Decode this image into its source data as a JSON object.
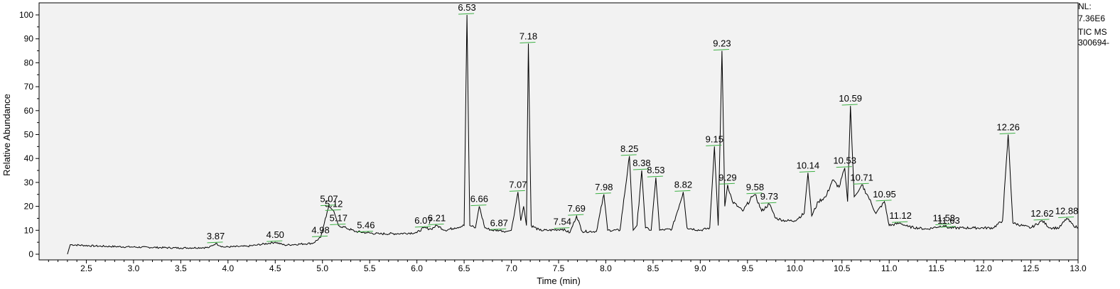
{
  "info": {
    "nl_label": "NL:",
    "nl_value": "7.36E6",
    "scan_label": "TIC  MS",
    "sample": "300694-"
  },
  "chart_data": {
    "type": "line",
    "title": "",
    "xlabel": "Time (min)",
    "ylabel": "Relative Abundance",
    "xlim": [
      2.0,
      13.0
    ],
    "ylim": [
      0,
      100
    ],
    "x_ticks": [
      "2.5",
      "3.0",
      "3.5",
      "4.0",
      "4.5",
      "5.0",
      "5.5",
      "6.0",
      "6.5",
      "7.0",
      "7.5",
      "8.0",
      "8.5",
      "9.0",
      "9.5",
      "10.0",
      "10.5",
      "11.0",
      "11.5",
      "12.0",
      "12.5",
      "13.0"
    ],
    "y_ticks": [
      "0",
      "10",
      "20",
      "30",
      "40",
      "50",
      "60",
      "70",
      "80",
      "90",
      "100"
    ],
    "grid": false,
    "baseline_points": [
      [
        2.3,
        0
      ],
      [
        2.33,
        4
      ],
      [
        2.6,
        3.4
      ],
      [
        3.0,
        3
      ],
      [
        3.5,
        2.6
      ],
      [
        3.8,
        2.8
      ],
      [
        3.87,
        4.5
      ],
      [
        3.95,
        3
      ],
      [
        4.2,
        3.3
      ],
      [
        4.3,
        3.8
      ],
      [
        4.5,
        5
      ],
      [
        4.6,
        3.8
      ],
      [
        4.9,
        4.6
      ],
      [
        4.98,
        7
      ],
      [
        5.02,
        13
      ],
      [
        5.07,
        20
      ],
      [
        5.12,
        18
      ],
      [
        5.17,
        12
      ],
      [
        5.25,
        11
      ],
      [
        5.35,
        9.5
      ],
      [
        5.46,
        9
      ],
      [
        5.6,
        8.5
      ],
      [
        5.8,
        8.6
      ],
      [
        6.0,
        9
      ],
      [
        6.07,
        11
      ],
      [
        6.15,
        10.5
      ],
      [
        6.21,
        12
      ],
      [
        6.3,
        10
      ],
      [
        6.4,
        11
      ],
      [
        6.5,
        12
      ],
      [
        6.53,
        100
      ],
      [
        6.56,
        12
      ],
      [
        6.62,
        11
      ],
      [
        6.66,
        20
      ],
      [
        6.72,
        11
      ],
      [
        6.8,
        10
      ],
      [
        6.87,
        10
      ],
      [
        6.95,
        9.5
      ],
      [
        7.0,
        10
      ],
      [
        7.07,
        26
      ],
      [
        7.1,
        14
      ],
      [
        7.13,
        20
      ],
      [
        7.16,
        12
      ],
      [
        7.18,
        88
      ],
      [
        7.21,
        12
      ],
      [
        7.3,
        10
      ],
      [
        7.4,
        10
      ],
      [
        7.54,
        10.5
      ],
      [
        7.62,
        9
      ],
      [
        7.69,
        16
      ],
      [
        7.75,
        9.5
      ],
      [
        7.9,
        9.5
      ],
      [
        7.98,
        25
      ],
      [
        8.02,
        10
      ],
      [
        8.15,
        10
      ],
      [
        8.25,
        41
      ],
      [
        8.29,
        10
      ],
      [
        8.33,
        12
      ],
      [
        8.38,
        35
      ],
      [
        8.42,
        11
      ],
      [
        8.48,
        10
      ],
      [
        8.53,
        32
      ],
      [
        8.57,
        10
      ],
      [
        8.7,
        10.5
      ],
      [
        8.82,
        26
      ],
      [
        8.86,
        11
      ],
      [
        9.0,
        10
      ],
      [
        9.1,
        11
      ],
      [
        9.15,
        45
      ],
      [
        9.19,
        12
      ],
      [
        9.23,
        85
      ],
      [
        9.26,
        20
      ],
      [
        9.29,
        29
      ],
      [
        9.34,
        22
      ],
      [
        9.45,
        18
      ],
      [
        9.55,
        24
      ],
      [
        9.58,
        25
      ],
      [
        9.65,
        18
      ],
      [
        9.73,
        21
      ],
      [
        9.8,
        15
      ],
      [
        9.9,
        14
      ],
      [
        10.0,
        14
      ],
      [
        10.1,
        17
      ],
      [
        10.14,
        34
      ],
      [
        10.18,
        16
      ],
      [
        10.25,
        22
      ],
      [
        10.33,
        24
      ],
      [
        10.4,
        31
      ],
      [
        10.47,
        28
      ],
      [
        10.53,
        36
      ],
      [
        10.56,
        22
      ],
      [
        10.59,
        62
      ],
      [
        10.63,
        24
      ],
      [
        10.67,
        26
      ],
      [
        10.71,
        29
      ],
      [
        10.78,
        24
      ],
      [
        10.86,
        17
      ],
      [
        10.95,
        22
      ],
      [
        11.0,
        12
      ],
      [
        11.12,
        13
      ],
      [
        11.2,
        11.5
      ],
      [
        11.4,
        10.5
      ],
      [
        11.58,
        12
      ],
      [
        11.63,
        11
      ],
      [
        11.9,
        11
      ],
      [
        12.1,
        11
      ],
      [
        12.2,
        14
      ],
      [
        12.26,
        50
      ],
      [
        12.31,
        13
      ],
      [
        12.5,
        11
      ],
      [
        12.62,
        14
      ],
      [
        12.7,
        11
      ],
      [
        12.8,
        11
      ],
      [
        12.88,
        15
      ],
      [
        12.95,
        12
      ],
      [
        13.0,
        11
      ]
    ],
    "peak_labels": [
      {
        "label": "3.87",
        "x": 3.87,
        "y": 4.5
      },
      {
        "label": "4.50",
        "x": 4.5,
        "y": 5
      },
      {
        "label": "4.98",
        "x": 4.98,
        "y": 7
      },
      {
        "label": "5.07",
        "x": 5.07,
        "y": 20
      },
      {
        "label": "5.12",
        "x": 5.12,
        "y": 18
      },
      {
        "label": "5.17",
        "x": 5.17,
        "y": 12
      },
      {
        "label": "5.46",
        "x": 5.46,
        "y": 9
      },
      {
        "label": "6.07",
        "x": 6.07,
        "y": 11
      },
      {
        "label": "6.21",
        "x": 6.21,
        "y": 12
      },
      {
        "label": "6.53",
        "x": 6.53,
        "y": 100
      },
      {
        "label": "6.66",
        "x": 6.66,
        "y": 20
      },
      {
        "label": "6.87",
        "x": 6.87,
        "y": 10
      },
      {
        "label": "7.07",
        "x": 7.07,
        "y": 26
      },
      {
        "label": "7.18",
        "x": 7.18,
        "y": 88
      },
      {
        "label": "7.54",
        "x": 7.54,
        "y": 10.5
      },
      {
        "label": "7.69",
        "x": 7.69,
        "y": 16
      },
      {
        "label": "7.98",
        "x": 7.98,
        "y": 25
      },
      {
        "label": "8.25",
        "x": 8.25,
        "y": 41
      },
      {
        "label": "8.38",
        "x": 8.38,
        "y": 35
      },
      {
        "label": "8.53",
        "x": 8.53,
        "y": 32
      },
      {
        "label": "8.82",
        "x": 8.82,
        "y": 26
      },
      {
        "label": "9.15",
        "x": 9.15,
        "y": 45
      },
      {
        "label": "9.23",
        "x": 9.23,
        "y": 85
      },
      {
        "label": "9.29",
        "x": 9.29,
        "y": 29
      },
      {
        "label": "9.58",
        "x": 9.58,
        "y": 25
      },
      {
        "label": "9.73",
        "x": 9.73,
        "y": 21
      },
      {
        "label": "10.14",
        "x": 10.14,
        "y": 34
      },
      {
        "label": "10.53",
        "x": 10.53,
        "y": 36
      },
      {
        "label": "10.59",
        "x": 10.59,
        "y": 62
      },
      {
        "label": "10.71",
        "x": 10.71,
        "y": 29
      },
      {
        "label": "10.95",
        "x": 10.95,
        "y": 22
      },
      {
        "label": "11.12",
        "x": 11.12,
        "y": 13
      },
      {
        "label": "11.58",
        "x": 11.58,
        "y": 12
      },
      {
        "label": "11.63",
        "x": 11.63,
        "y": 11
      },
      {
        "label": "12.26",
        "x": 12.26,
        "y": 50
      },
      {
        "label": "12.62",
        "x": 12.62,
        "y": 14
      },
      {
        "label": "12.88",
        "x": 12.88,
        "y": 15
      }
    ]
  }
}
